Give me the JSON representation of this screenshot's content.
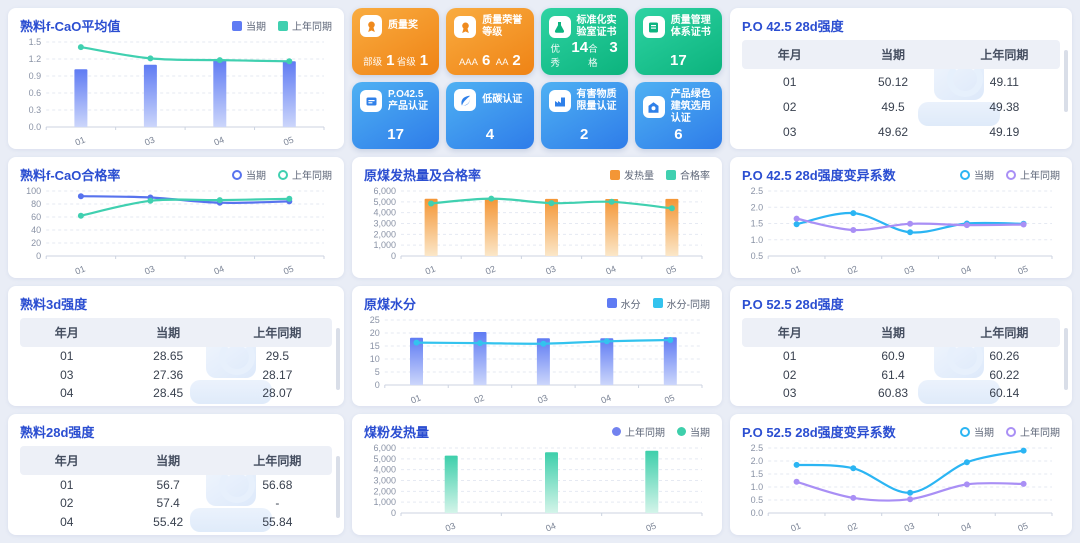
{
  "colors": {
    "page_bg": "#e9edf6",
    "panel_bg": "#ffffff",
    "title_blue": "#2b4ed1",
    "axis_label": "#8a93a6",
    "grid_line": "#e5e9f2",
    "series_blue": "#5f7bf3",
    "series_teal": "#40d0b0",
    "series_orange": "#f49636",
    "series_cyan": "#2bb5f3",
    "series_purple": "#a98ff5",
    "card_orange": "#ef8315",
    "card_green": "#0cb37d",
    "card_blue": "#2e7ce9"
  },
  "cards": [
    {
      "theme": "orange",
      "icon": "medal-icon",
      "title": "质量奖",
      "stats": [
        {
          "label": "部级",
          "value": "1"
        },
        {
          "label": "省级",
          "value": "1"
        }
      ]
    },
    {
      "theme": "orange",
      "icon": "medal-icon",
      "title": "质量荣誉等级",
      "stats": [
        {
          "label": "AAA",
          "value": "6"
        },
        {
          "label": "AA",
          "value": "2"
        }
      ]
    },
    {
      "theme": "green",
      "icon": "flask-icon",
      "title": "标准化实验室证书",
      "stats": [
        {
          "label": "优秀",
          "value": "14"
        },
        {
          "label": "合格",
          "value": "3"
        }
      ]
    },
    {
      "theme": "green",
      "icon": "certificate-icon",
      "title": "质量管理体系证书",
      "stats": [
        {
          "label": "",
          "value": "17"
        }
      ]
    },
    {
      "theme": "blue",
      "icon": "product-cert-icon",
      "title": "P.O42.5 产品认证",
      "stats": [
        {
          "label": "",
          "value": "17"
        }
      ]
    },
    {
      "theme": "blue",
      "icon": "leaf-icon",
      "title": "低碳认证",
      "stats": [
        {
          "label": "",
          "value": "4"
        }
      ]
    },
    {
      "theme": "blue",
      "icon": "hazardous-substance-icon",
      "title": "有害物质限量认证",
      "stats": [
        {
          "label": "",
          "value": "2"
        }
      ]
    },
    {
      "theme": "blue",
      "icon": "green-building-icon",
      "title": "产品绿色建筑选用认证",
      "stats": [
        {
          "label": "",
          "value": "6"
        }
      ]
    }
  ],
  "tables": [
    {
      "id": "clinker_3d",
      "title": "熟料3d强度",
      "columns": [
        "年月",
        "当期",
        "上年同期"
      ],
      "rows": [
        [
          "01",
          "28.65",
          "29.5"
        ],
        [
          "03",
          "27.36",
          "28.17"
        ],
        [
          "04",
          "28.45",
          "28.07"
        ]
      ]
    },
    {
      "id": "clinker_28d",
      "title": "熟料28d强度",
      "columns": [
        "年月",
        "当期",
        "上年同期"
      ],
      "rows": [
        [
          "01",
          "56.7",
          "56.68"
        ],
        [
          "02",
          "57.4",
          "-"
        ],
        [
          "04",
          "55.42",
          "55.84"
        ]
      ]
    },
    {
      "id": "po425_28d",
      "title": "P.O 42.5 28d强度",
      "columns": [
        "年月",
        "当期",
        "上年同期"
      ],
      "rows": [
        [
          "01",
          "50.12",
          "49.11"
        ],
        [
          "02",
          "49.5",
          "49.38"
        ],
        [
          "03",
          "49.62",
          "49.19"
        ]
      ]
    },
    {
      "id": "po525_28d",
      "title": "P.O 52.5 28d强度",
      "columns": [
        "年月",
        "当期",
        "上年同期"
      ],
      "rows": [
        [
          "01",
          "60.9",
          "60.26"
        ],
        [
          "02",
          "61.4",
          "60.22"
        ],
        [
          "03",
          "60.83",
          "60.14"
        ]
      ]
    }
  ],
  "chart_data": [
    {
      "id": "fcao_avg",
      "type": "combo",
      "title": "熟料f-CaO平均值",
      "legend_marker": "square",
      "legend_position": "top-right",
      "categories": [
        "01",
        "03",
        "04",
        "05"
      ],
      "ylim": [
        0,
        1.5
      ],
      "yticks": [
        "0.0",
        "0.3",
        "0.6",
        "0.9",
        "1.2",
        "1.5"
      ],
      "series": [
        {
          "name": "当期",
          "type": "bar",
          "color": "#5f7bf3",
          "color_light": "#ccd6fb",
          "values": [
            1.02,
            1.1,
            1.19,
            1.16
          ]
        },
        {
          "name": "上年同期",
          "type": "line",
          "color": "#40d0b0",
          "values": [
            1.41,
            1.21,
            1.18,
            1.16
          ]
        }
      ]
    },
    {
      "id": "fcao_rate",
      "type": "line",
      "title": "熟料f-CaO合格率",
      "legend_marker": "ring",
      "legend_position": "top-right",
      "categories": [
        "01",
        "03",
        "04",
        "05"
      ],
      "ylim": [
        0,
        100
      ],
      "yticks": [
        "0",
        "20",
        "40",
        "60",
        "80",
        "100"
      ],
      "series": [
        {
          "name": "当期",
          "type": "line",
          "color": "#5873ee",
          "values": [
            92,
            90,
            82,
            84
          ]
        },
        {
          "name": "上年同期",
          "type": "line",
          "color": "#40d0b0",
          "values": [
            62,
            85,
            86,
            88
          ]
        }
      ]
    },
    {
      "id": "raw_coal_heat",
      "type": "combo",
      "title": "原煤发热量及合格率",
      "legend_marker": "square",
      "legend_position": "top-right",
      "categories": [
        "01",
        "02",
        "03",
        "04",
        "05"
      ],
      "ylim": [
        0,
        6000
      ],
      "yticks": [
        "0",
        "1,000",
        "2,000",
        "3,000",
        "4,000",
        "5,000",
        "6,000"
      ],
      "series": [
        {
          "name": "发热量",
          "type": "bar",
          "color": "#f49636",
          "color_light": "#fbe7c9",
          "values": [
            5280,
            5280,
            5270,
            5260,
            5270
          ]
        },
        {
          "name": "合格率",
          "type": "line",
          "color": "#40d0b0",
          "values": [
            4850,
            5300,
            4880,
            5000,
            4400
          ]
        }
      ]
    },
    {
      "id": "po425_cv",
      "type": "line",
      "title": "P.O 42.5 28d强度变异系数",
      "legend_marker": "ring",
      "legend_position": "top-right",
      "categories": [
        "01",
        "02",
        "03",
        "04",
        "05"
      ],
      "ylim": [
        0.5,
        2.5
      ],
      "yticks": [
        "0.5",
        "1.0",
        "1.5",
        "2.0",
        "2.5"
      ],
      "series": [
        {
          "name": "当期",
          "type": "line",
          "color": "#2bb5f3",
          "values": [
            1.48,
            1.82,
            1.23,
            1.5,
            1.49
          ]
        },
        {
          "name": "上年同期",
          "type": "line",
          "color": "#a98ff5",
          "values": [
            1.65,
            1.3,
            1.49,
            1.45,
            1.47
          ]
        }
      ]
    },
    {
      "id": "coal_moisture",
      "type": "combo",
      "title": "原煤水分",
      "legend_marker": "square",
      "legend_position": "top-right",
      "categories": [
        "01",
        "02",
        "03",
        "04",
        "05"
      ],
      "ylim": [
        0,
        25
      ],
      "yticks": [
        "0",
        "5",
        "10",
        "15",
        "20",
        "25"
      ],
      "series": [
        {
          "name": "水分",
          "type": "bar",
          "color": "#5f7bf3",
          "color_light": "#ccd6fb",
          "values": [
            18.2,
            20.4,
            18.0,
            18.0,
            18.4
          ]
        },
        {
          "name": "水分-同期",
          "type": "line",
          "color": "#33c3ee",
          "values": [
            16.3,
            16.1,
            15.9,
            16.8,
            17.3
          ]
        }
      ]
    },
    {
      "id": "coal_powder_heat",
      "type": "bar",
      "title": "煤粉发热量",
      "legend_marker": "dot",
      "legend_position": "top-right",
      "categories": [
        "03",
        "04",
        "05"
      ],
      "ylim": [
        0,
        6000
      ],
      "yticks": [
        "0",
        "1,000",
        "2,000",
        "3,000",
        "4,000",
        "5,000",
        "6,000"
      ],
      "series": [
        {
          "name": "上年同期",
          "type": "bar",
          "color": "#7282ef",
          "color_light": "#ccd3fb",
          "values": []
        },
        {
          "name": "当期",
          "type": "bar",
          "color": "#3ecfab",
          "color_light": "#d4f4e9",
          "values": [
            5300,
            5600,
            5750
          ]
        }
      ]
    },
    {
      "id": "po525_cv",
      "type": "line",
      "title": "P.O 52.5 28d强度变异系数",
      "legend_marker": "ring",
      "legend_position": "top-right",
      "categories": [
        "01",
        "02",
        "03",
        "04",
        "05"
      ],
      "ylim": [
        0,
        2.5
      ],
      "yticks": [
        "0.0",
        "0.5",
        "1.0",
        "1.5",
        "2.0",
        "2.5"
      ],
      "series": [
        {
          "name": "当期",
          "type": "line",
          "color": "#2bb5f3",
          "values": [
            1.85,
            1.72,
            0.78,
            1.95,
            2.4
          ]
        },
        {
          "name": "上年同期",
          "type": "line",
          "color": "#a98ff5",
          "values": [
            1.2,
            0.58,
            0.53,
            1.1,
            1.12
          ]
        }
      ]
    }
  ]
}
